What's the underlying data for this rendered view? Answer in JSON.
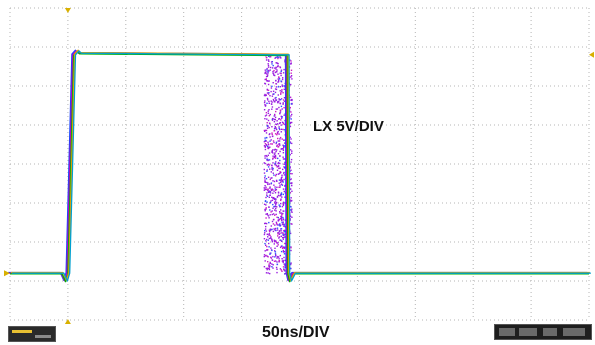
{
  "chart_data": {
    "type": "line",
    "title": "",
    "xlabel": "50ns/DIV",
    "ylabel": "LX 5V/DIV",
    "x_unit": "ns",
    "y_unit": "V",
    "x_per_div": 50,
    "y_per_div": 5,
    "xlim": [
      0,
      500
    ],
    "ylim": [
      -20,
      20
    ],
    "grid": true,
    "series": [
      {
        "values_x": [
          0,
          45,
          48,
          50,
          52,
          55,
          58,
          60,
          230,
          239.5,
          240,
          241.5,
          245,
          250,
          500
        ],
        "values_y": [
          -14,
          -14,
          -15,
          -14,
          -3,
          14,
          14.5,
          14.2,
          14,
          14,
          -14,
          -15,
          -14,
          -14,
          -14
        ]
      }
    ],
    "switching_jitter_band_ns": [
      219,
      243
    ],
    "trace_colors": [
      "#1a44ff",
      "#c000c0",
      "#00b000",
      "#e8a000",
      "#00a0d0"
    ]
  },
  "labels": {
    "channel": "LX 5V/DIV",
    "timebase": "50ns/DIV"
  }
}
